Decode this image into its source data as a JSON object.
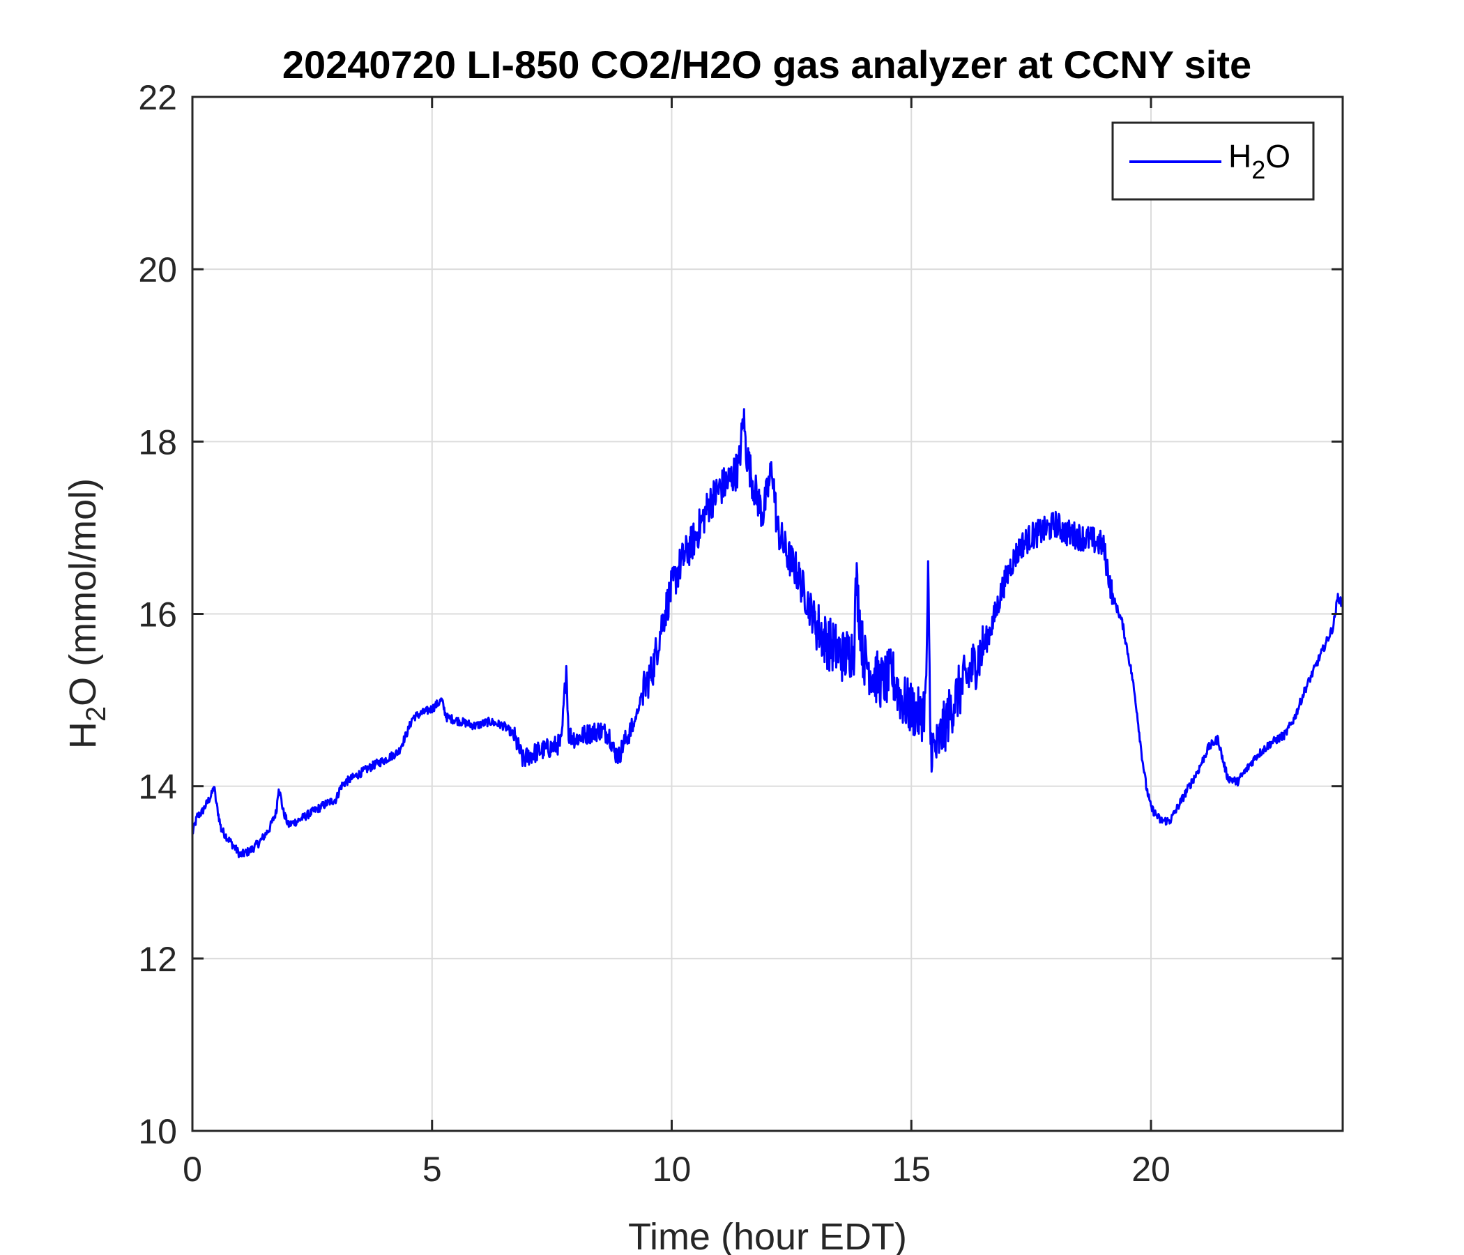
{
  "chart_data": {
    "type": "line",
    "title": "20240720 LI-850 CO2/H2O gas analyzer at CCNY site",
    "xlabel": "Time (hour EDT)",
    "ylabel": {
      "main": "H",
      "sub": "2",
      "rest": "O (mmol/mol)"
    },
    "xlim": [
      0,
      24
    ],
    "ylim": [
      10,
      22
    ],
    "xticks": [
      0,
      5,
      10,
      15,
      20
    ],
    "yticks": [
      10,
      12,
      14,
      16,
      18,
      20,
      22
    ],
    "grid": true,
    "legend": {
      "placement": "top-right",
      "entries": [
        {
          "main": "H",
          "sub": "2",
          "rest": "O"
        }
      ]
    },
    "series": [
      {
        "name": "H2O",
        "color": "#0000ff",
        "x": [
          0,
          0.1,
          0.2,
          0.3,
          0.4,
          0.45,
          0.5,
          0.6,
          0.8,
          1.0,
          1.2,
          1.4,
          1.6,
          1.75,
          1.8,
          1.9,
          2.0,
          2.2,
          2.5,
          2.8,
          3.0,
          3.1,
          3.2,
          3.5,
          3.8,
          4.0,
          4.3,
          4.5,
          4.6,
          4.8,
          5.0,
          5.2,
          5.3,
          5.6,
          5.9,
          6.2,
          6.5,
          6.7,
          6.9,
          7.0,
          7.2,
          7.5,
          7.7,
          7.8,
          7.85,
          8.0,
          8.2,
          8.5,
          8.7,
          8.8,
          8.9,
          9.0,
          9.2,
          9.4,
          9.6,
          9.8,
          10.0,
          10.2,
          10.5,
          10.8,
          11.0,
          11.2,
          11.4,
          11.5,
          11.55,
          11.7,
          11.9,
          12.1,
          12.2,
          12.4,
          12.6,
          12.8,
          13.0,
          13.2,
          13.4,
          13.6,
          13.8,
          13.85,
          14.0,
          14.2,
          14.4,
          14.6,
          14.8,
          15.0,
          15.2,
          15.3,
          15.35,
          15.4,
          15.5,
          15.7,
          15.9,
          16.1,
          16.3,
          16.5,
          16.7,
          16.9,
          17.1,
          17.3,
          17.5,
          17.7,
          17.9,
          18.0,
          18.2,
          18.5,
          18.8,
          19.0,
          19.2,
          19.4,
          19.6,
          19.7,
          19.8,
          19.9,
          20.0,
          20.2,
          20.4,
          20.6,
          20.8,
          21.0,
          21.2,
          21.4,
          21.5,
          21.6,
          21.8,
          22.0,
          22.2,
          22.5,
          22.8,
          23.0,
          23.2,
          23.4,
          23.6,
          23.8,
          23.9,
          24.0
        ],
        "y": [
          13.45,
          13.65,
          13.7,
          13.8,
          13.9,
          14.0,
          13.8,
          13.5,
          13.35,
          13.2,
          13.25,
          13.35,
          13.5,
          13.7,
          14.0,
          13.7,
          13.55,
          13.6,
          13.7,
          13.8,
          13.85,
          14.0,
          14.05,
          14.15,
          14.25,
          14.3,
          14.4,
          14.65,
          14.8,
          14.85,
          14.9,
          15.0,
          14.8,
          14.75,
          14.7,
          14.75,
          14.7,
          14.6,
          14.3,
          14.35,
          14.4,
          14.45,
          14.5,
          15.4,
          14.6,
          14.55,
          14.6,
          14.65,
          14.6,
          14.4,
          14.35,
          14.5,
          14.7,
          15.1,
          15.35,
          15.9,
          16.3,
          16.6,
          16.9,
          17.3,
          17.45,
          17.55,
          17.7,
          18.3,
          17.9,
          17.5,
          17.15,
          17.7,
          17.0,
          16.7,
          16.5,
          16.2,
          15.9,
          15.7,
          15.6,
          15.5,
          15.6,
          16.4,
          15.5,
          15.3,
          15.2,
          15.3,
          15.0,
          14.9,
          14.8,
          15.0,
          16.4,
          14.5,
          14.4,
          14.7,
          15.0,
          15.2,
          15.4,
          15.6,
          15.9,
          16.3,
          16.6,
          16.8,
          16.9,
          16.95,
          17.0,
          17.05,
          16.95,
          16.9,
          16.85,
          16.8,
          16.2,
          15.9,
          15.3,
          14.9,
          14.4,
          14.0,
          13.75,
          13.6,
          13.6,
          13.8,
          14.0,
          14.2,
          14.45,
          14.55,
          14.3,
          14.1,
          14.05,
          14.2,
          14.35,
          14.5,
          14.6,
          14.8,
          15.1,
          15.35,
          15.6,
          15.85,
          16.2,
          16.1
        ]
      }
    ]
  }
}
